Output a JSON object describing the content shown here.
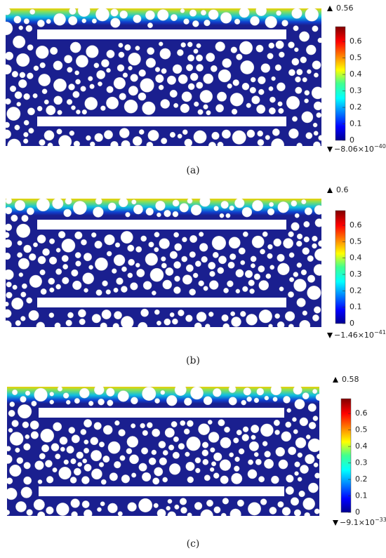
{
  "panels": [
    {
      "caption": "(a)",
      "max_label": "0.56",
      "min_label": {
        "mantissa": "−8.06×10",
        "exponent": "−40"
      }
    },
    {
      "caption": "(b)",
      "max_label": "0.6",
      "min_label": {
        "mantissa": "−1.46×10",
        "exponent": "−41"
      }
    },
    {
      "caption": "(c)",
      "max_label": "0.58",
      "min_label": {
        "mantissa": "−9.1×10",
        "exponent": "−33"
      }
    }
  ],
  "colorbar": {
    "lim": [
      0,
      0.69
    ],
    "ticks": [
      0,
      0.1,
      0.2,
      0.3,
      0.4,
      0.5,
      0.6
    ]
  }
}
